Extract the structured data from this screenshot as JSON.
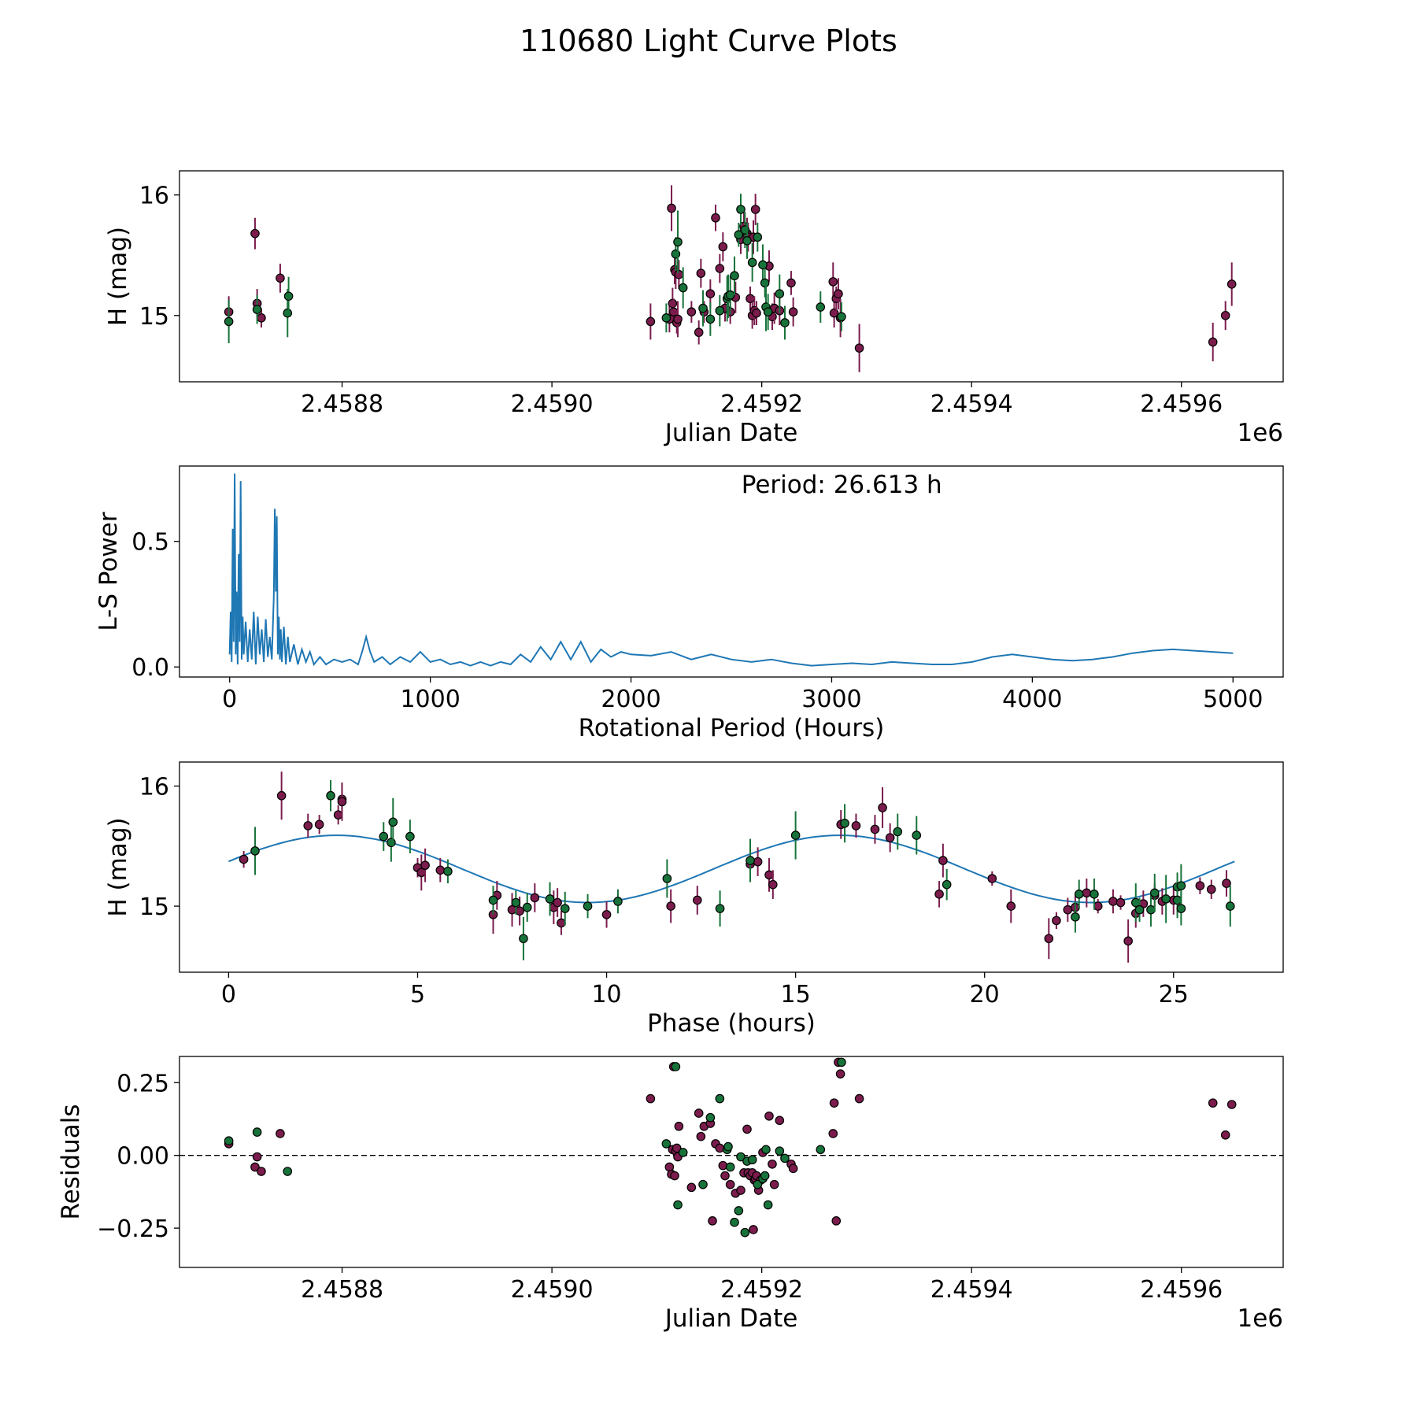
{
  "figure_title": "110680 Light Curve Plots",
  "colors": {
    "magenta": "#7b1c4d",
    "green": "#18733a",
    "line": "#1f77b4"
  },
  "chart_data": [
    {
      "id": "lc",
      "type": "scatter",
      "xlabel": "Julian Date",
      "ylabel": "H (mag)",
      "x_offset_label": "1e6",
      "xlim": [
        2458645,
        2459697
      ],
      "ylim": [
        14.45,
        16.2
      ],
      "xticks": [
        2458800,
        2459000,
        2459200,
        2459400,
        2459600
      ],
      "xtick_labels": [
        "2.4588",
        "2.4590",
        "2.4592",
        "2.4594",
        "2.4596"
      ],
      "yticks": [
        15,
        16
      ],
      "ytick_labels": [
        "15",
        "16"
      ],
      "series": [
        {
          "name": "band-1",
          "color": "magenta",
          "x": [
            2458692,
            2458717,
            2458719,
            2458723,
            2458741,
            2459094,
            2459112,
            2459114,
            2459115,
            2459116,
            2459117,
            2459118,
            2459119,
            2459120,
            2459121,
            2459133,
            2459140,
            2459142,
            2459145,
            2459151,
            2459156,
            2459160,
            2459163,
            2459165,
            2459170,
            2459175,
            2459180,
            2459183,
            2459186,
            2459187,
            2459189,
            2459191,
            2459192,
            2459193,
            2459194,
            2459195,
            2459207,
            2459210,
            2459212,
            2459217,
            2459228,
            2459230,
            2459268,
            2459269,
            2459271,
            2459273,
            2459275,
            2459293,
            2459630,
            2459642,
            2459648
          ],
          "y": [
            15.03,
            15.68,
            15.1,
            14.98,
            15.31,
            14.95,
            14.97,
            15.89,
            15.1,
            15.03,
            15.38,
            15.36,
            14.94,
            14.97,
            15.34,
            15.03,
            14.86,
            15.35,
            15.03,
            15.18,
            15.81,
            15.39,
            15.57,
            15.06,
            15.03,
            15.15,
            15.63,
            15.74,
            15.68,
            15.65,
            15.14,
            15.0,
            15.65,
            15.04,
            15.88,
            15.02,
            15.41,
            14.99,
            15.06,
            15.04,
            15.27,
            15.03,
            15.28,
            15.02,
            15.14,
            15.18,
            14.98,
            14.73,
            14.78,
            15.0,
            15.26
          ],
          "err": [
            0.13,
            0.13,
            0.12,
            0.08,
            0.12,
            0.15,
            0.11,
            0.19,
            0.13,
            0.11,
            0.12,
            0.14,
            0.09,
            0.15,
            0.12,
            0.09,
            0.1,
            0.12,
            0.09,
            0.12,
            0.11,
            0.12,
            0.12,
            0.11,
            0.1,
            0.13,
            0.12,
            0.11,
            0.13,
            0.12,
            0.1,
            0.11,
            0.14,
            0.12,
            0.13,
            0.1,
            0.13,
            0.11,
            0.13,
            0.12,
            0.1,
            0.12,
            0.16,
            0.12,
            0.1,
            0.13,
            0.16,
            0.2,
            0.16,
            0.12,
            0.18
          ]
        },
        {
          "name": "band-2",
          "color": "green",
          "x": [
            2458692,
            2458719,
            2458748,
            2458749,
            2459109,
            2459118,
            2459120,
            2459125,
            2459144,
            2459151,
            2459160,
            2459167,
            2459168,
            2459170,
            2459174,
            2459178,
            2459180,
            2459184,
            2459186,
            2459191,
            2459196,
            2459201,
            2459203,
            2459204,
            2459206,
            2459217,
            2459222,
            2459256,
            2459276
          ],
          "y": [
            14.95,
            15.05,
            15.02,
            15.16,
            14.98,
            15.51,
            15.61,
            15.23,
            15.06,
            14.97,
            15.04,
            15.14,
            15.16,
            15.17,
            15.33,
            15.67,
            15.88,
            15.71,
            15.62,
            15.44,
            15.65,
            15.42,
            15.27,
            15.07,
            15.03,
            15.18,
            14.94,
            15.07,
            14.99
          ],
          "err": [
            0.18,
            0.12,
            0.2,
            0.16,
            0.12,
            0.14,
            0.26,
            0.17,
            0.15,
            0.14,
            0.13,
            0.19,
            0.18,
            0.16,
            0.16,
            0.1,
            0.13,
            0.15,
            0.15,
            0.16,
            0.12,
            0.17,
            0.12,
            0.2,
            0.15,
            0.16,
            0.14,
            0.13,
            0.12
          ]
        }
      ]
    },
    {
      "id": "ls",
      "type": "line",
      "xlabel": "Rotational Period (Hours)",
      "ylabel": "L-S Power",
      "annotation": "Period: 26.613 h",
      "xlim": [
        -250,
        5250
      ],
      "ylim": [
        -0.04,
        0.8
      ],
      "xticks": [
        0,
        1000,
        2000,
        3000,
        4000,
        5000
      ],
      "xtick_labels": [
        "0",
        "1000",
        "2000",
        "3000",
        "4000",
        "5000"
      ],
      "yticks": [
        0,
        0.5
      ],
      "ytick_labels": [
        "0.0",
        "0.5"
      ],
      "x": [
        0,
        5,
        10,
        15,
        20,
        25,
        30,
        35,
        40,
        45,
        50,
        55,
        60,
        65,
        70,
        80,
        90,
        100,
        110,
        120,
        130,
        140,
        150,
        160,
        170,
        180,
        190,
        200,
        210,
        220,
        225,
        230,
        235,
        240,
        245,
        250,
        255,
        260,
        270,
        280,
        290,
        300,
        320,
        340,
        360,
        380,
        400,
        420,
        450,
        480,
        520,
        560,
        600,
        640,
        660,
        680,
        700,
        720,
        760,
        800,
        850,
        900,
        950,
        1000,
        1050,
        1100,
        1150,
        1200,
        1250,
        1300,
        1350,
        1400,
        1450,
        1500,
        1550,
        1600,
        1650,
        1700,
        1750,
        1800,
        1850,
        1900,
        1950,
        2000,
        2100,
        2200,
        2300,
        2400,
        2500,
        2600,
        2700,
        2800,
        2900,
        3000,
        3100,
        3200,
        3300,
        3400,
        3500,
        3600,
        3700,
        3800,
        3900,
        4000,
        4100,
        4200,
        4300,
        4400,
        4500,
        4600,
        4700,
        4800,
        4900,
        5000
      ],
      "y": [
        0.05,
        0.22,
        0.02,
        0.55,
        0.1,
        0.77,
        0.05,
        0.3,
        0.01,
        0.45,
        0.1,
        0.74,
        0.03,
        0.2,
        0.05,
        0.18,
        0.02,
        0.15,
        0.03,
        0.22,
        0.01,
        0.2,
        0.05,
        0.15,
        0.02,
        0.19,
        0.04,
        0.12,
        0.03,
        0.28,
        0.63,
        0.3,
        0.6,
        0.05,
        0.2,
        0.03,
        0.15,
        0.02,
        0.16,
        0.01,
        0.12,
        0.02,
        0.09,
        0.01,
        0.07,
        0.02,
        0.06,
        0.01,
        0.04,
        0.01,
        0.03,
        0.02,
        0.03,
        0.01,
        0.06,
        0.12,
        0.06,
        0.02,
        0.04,
        0.01,
        0.04,
        0.02,
        0.06,
        0.02,
        0.03,
        0.01,
        0.02,
        0.005,
        0.02,
        0.005,
        0.02,
        0.01,
        0.05,
        0.02,
        0.08,
        0.03,
        0.1,
        0.03,
        0.1,
        0.02,
        0.07,
        0.04,
        0.06,
        0.05,
        0.045,
        0.06,
        0.03,
        0.05,
        0.03,
        0.02,
        0.03,
        0.015,
        0.005,
        0.01,
        0.015,
        0.01,
        0.02,
        0.015,
        0.01,
        0.01,
        0.02,
        0.04,
        0.05,
        0.04,
        0.03,
        0.025,
        0.03,
        0.04,
        0.055,
        0.065,
        0.07,
        0.065,
        0.06,
        0.055
      ]
    },
    {
      "id": "phase",
      "type": "scatter",
      "xlabel": "Phase (hours)",
      "ylabel": "H (mag)",
      "xlim": [
        -1.3,
        27.9
      ],
      "ylim": [
        14.45,
        16.2
      ],
      "xticks": [
        0,
        5,
        10,
        15,
        20,
        25
      ],
      "xtick_labels": [
        "0",
        "5",
        "10",
        "15",
        "20",
        "25"
      ],
      "yticks": [
        15,
        16
      ],
      "ytick_labels": [
        "15",
        "16"
      ],
      "model_curve": {
        "period_hours": 26.613,
        "mean": 15.31,
        "amplitude": 0.28,
        "phase_of_max_hours": 2.85,
        "color": "line"
      },
      "series": [
        {
          "name": "band-1",
          "color": "magenta",
          "x": [
            0.4,
            1.4,
            2.1,
            2.4,
            2.9,
            3.0,
            3.0,
            5.0,
            5.1,
            5.2,
            5.6,
            7.0,
            7.1,
            7.5,
            7.7,
            8.1,
            8.6,
            8.7,
            8.8,
            10.0,
            11.7,
            12.4,
            13.8,
            14.0,
            14.3,
            14.4,
            16.2,
            16.6,
            17.1,
            17.3,
            17.5,
            18.8,
            18.9,
            20.2,
            20.7,
            21.7,
            21.9,
            22.2,
            22.4,
            22.7,
            23.0,
            23.4,
            23.6,
            23.8,
            24.0,
            24.2,
            24.5,
            24.7,
            25.0,
            25.7,
            26.0,
            26.4
          ],
          "y": [
            15.39,
            15.92,
            15.67,
            15.68,
            15.76,
            15.89,
            15.87,
            15.32,
            15.28,
            15.34,
            15.3,
            14.93,
            15.09,
            14.97,
            14.96,
            15.07,
            14.99,
            15.03,
            14.86,
            14.93,
            15.0,
            15.05,
            15.35,
            15.37,
            15.26,
            15.18,
            15.68,
            15.67,
            15.64,
            15.82,
            15.57,
            15.1,
            15.38,
            15.23,
            15.0,
            14.73,
            14.88,
            14.97,
            14.99,
            15.11,
            15.0,
            15.04,
            15.03,
            14.71,
            14.94,
            15.02,
            15.09,
            15.04,
            15.05,
            15.17,
            15.14,
            15.19
          ],
          "err": [
            0.07,
            0.2,
            0.1,
            0.08,
            0.08,
            0.12,
            0.16,
            0.08,
            0.15,
            0.14,
            0.1,
            0.16,
            0.12,
            0.14,
            0.12,
            0.12,
            0.14,
            0.12,
            0.1,
            0.11,
            0.14,
            0.12,
            0.12,
            0.12,
            0.14,
            0.12,
            0.12,
            0.1,
            0.12,
            0.17,
            0.12,
            0.11,
            0.14,
            0.06,
            0.14,
            0.17,
            0.07,
            0.1,
            0.1,
            0.12,
            0.06,
            0.1,
            0.06,
            0.18,
            0.12,
            0.11,
            0.1,
            0.11,
            0.12,
            0.07,
            0.08,
            0.11
          ]
        },
        {
          "name": "band-2",
          "color": "green",
          "x": [
            0.7,
            2.7,
            4.1,
            4.3,
            4.35,
            4.8,
            5.8,
            7.0,
            7.6,
            7.8,
            7.9,
            8.5,
            8.9,
            9.5,
            10.3,
            11.6,
            13.0,
            13.8,
            15.0,
            16.3,
            17.7,
            18.2,
            19.0,
            22.4,
            22.5,
            22.9,
            24.0,
            24.1,
            24.4,
            24.5,
            24.8,
            25.1,
            25.1,
            25.2,
            25.2,
            26.5
          ],
          "y": [
            15.46,
            15.92,
            15.58,
            15.53,
            15.7,
            15.58,
            15.29,
            15.05,
            15.03,
            14.73,
            14.99,
            15.06,
            14.98,
            15.0,
            15.04,
            15.23,
            14.98,
            15.38,
            15.59,
            15.69,
            15.62,
            15.59,
            15.18,
            14.91,
            15.1,
            15.1,
            15.03,
            14.97,
            14.97,
            15.11,
            15.06,
            15.16,
            15.05,
            15.17,
            14.98,
            15.0
          ],
          "err": [
            0.2,
            0.13,
            0.12,
            0.16,
            0.2,
            0.14,
            0.1,
            0.12,
            0.1,
            0.18,
            0.12,
            0.14,
            0.14,
            0.1,
            0.1,
            0.16,
            0.15,
            0.18,
            0.2,
            0.16,
            0.15,
            0.16,
            0.13,
            0.13,
            0.12,
            0.13,
            0.16,
            0.1,
            0.14,
            0.16,
            0.2,
            0.12,
            0.15,
            0.18,
            0.14,
            0.17
          ]
        }
      ]
    },
    {
      "id": "resid",
      "type": "scatter",
      "xlabel": "Julian Date",
      "ylabel": "Residuals",
      "x_offset_label": "1e6",
      "xlim": [
        2458645,
        2459697
      ],
      "ylim": [
        -0.385,
        0.34
      ],
      "reference_line": 0,
      "xticks": [
        2458800,
        2459000,
        2459200,
        2459400,
        2459600
      ],
      "xtick_labels": [
        "2.4588",
        "2.4590",
        "2.4592",
        "2.4594",
        "2.4596"
      ],
      "yticks": [
        -0.25,
        0,
        0.25
      ],
      "ytick_labels": [
        "−0.25",
        "0.00",
        "0.25"
      ],
      "series": [
        {
          "name": "band-1",
          "color": "magenta",
          "x": [
            2458692,
            2458717,
            2458719,
            2458723,
            2458741,
            2459094,
            2459112,
            2459114,
            2459115,
            2459116,
            2459117,
            2459118,
            2459119,
            2459120,
            2459121,
            2459133,
            2459140,
            2459142,
            2459145,
            2459151,
            2459153,
            2459156,
            2459160,
            2459163,
            2459165,
            2459170,
            2459175,
            2459180,
            2459183,
            2459186,
            2459187,
            2459189,
            2459191,
            2459192,
            2459193,
            2459194,
            2459195,
            2459197,
            2459199,
            2459201,
            2459207,
            2459210,
            2459212,
            2459217,
            2459228,
            2459230,
            2459268,
            2459269,
            2459271,
            2459273,
            2459275,
            2459293,
            2459630,
            2459642,
            2459648
          ],
          "y": [
            0.04,
            -0.04,
            -0.005,
            -0.055,
            0.075,
            0.195,
            -0.04,
            -0.065,
            0.02,
            0.305,
            -0.07,
            0.015,
            0.025,
            -0.005,
            0.1,
            -0.11,
            0.145,
            0.065,
            0.1,
            0.11,
            -0.225,
            0.04,
            0.025,
            -0.035,
            -0.07,
            -0.1,
            -0.13,
            -0.12,
            -0.06,
            0.09,
            -0.06,
            -0.07,
            -0.06,
            -0.255,
            -0.085,
            -0.08,
            -0.07,
            -0.12,
            -0.085,
            0.01,
            0.135,
            -0.03,
            -0.1,
            0.12,
            -0.03,
            -0.045,
            0.075,
            0.18,
            -0.225,
            0.32,
            0.28,
            0.195,
            0.18,
            0.07,
            0.175
          ],
          "err": []
        },
        {
          "name": "band-2",
          "color": "green",
          "x": [
            2458692,
            2458719,
            2458748,
            2459109,
            2459118,
            2459120,
            2459125,
            2459144,
            2459151,
            2459160,
            2459167,
            2459168,
            2459170,
            2459174,
            2459178,
            2459180,
            2459184,
            2459186,
            2459191,
            2459196,
            2459201,
            2459203,
            2459204,
            2459206,
            2459217,
            2459222,
            2459256,
            2459276
          ],
          "y": [
            0.05,
            0.08,
            -0.055,
            0.04,
            0.305,
            -0.17,
            0.01,
            -0.1,
            0.13,
            0.195,
            0.02,
            0.03,
            -0.04,
            -0.23,
            -0.19,
            -0.005,
            -0.265,
            -0.02,
            -0.015,
            -0.1,
            -0.08,
            -0.07,
            0.02,
            -0.17,
            0.015,
            -0.01,
            0.02,
            0.32
          ],
          "err": []
        }
      ]
    }
  ]
}
